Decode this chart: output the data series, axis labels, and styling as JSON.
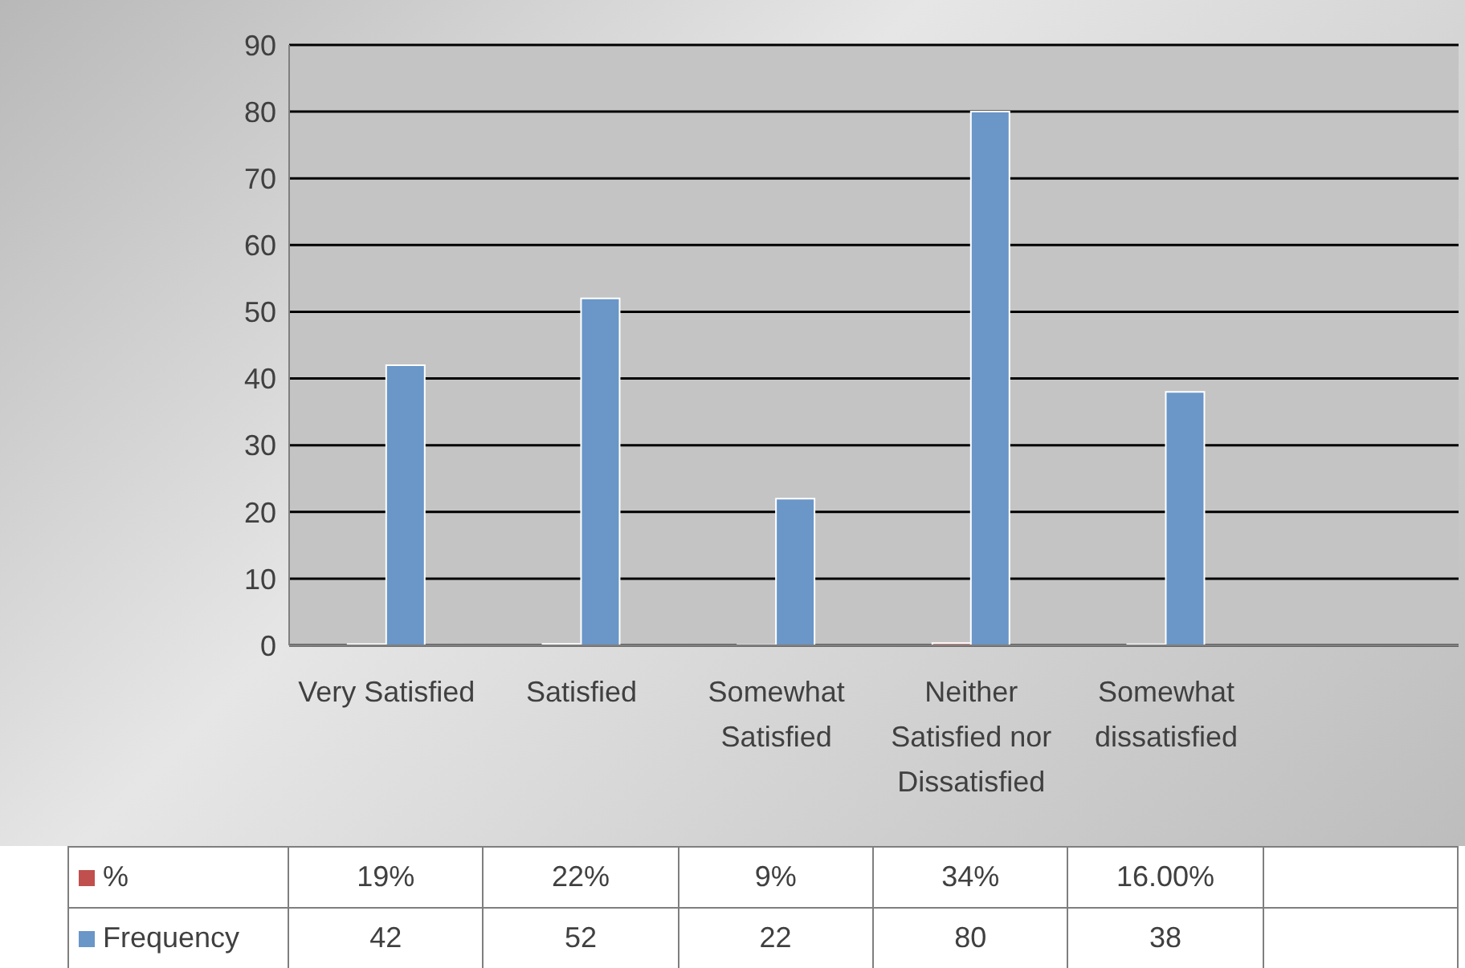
{
  "chart_data": {
    "type": "bar",
    "categories": [
      "Very Satisfied",
      "Satisfied",
      "Somewhat Satisfied",
      "Neither Satisfied nor Dissatisfied",
      "Somewhat dissatisfied",
      null
    ],
    "series": [
      {
        "name": "%",
        "color": "#c0504d",
        "values": [
          0.19,
          0.22,
          0.09,
          0.34,
          0.16,
          null
        ],
        "value_labels": [
          "19%",
          "22%",
          "9%",
          "34%",
          "16.00%",
          null
        ]
      },
      {
        "name": "Frequency",
        "color": "#6a96c8",
        "values": [
          42,
          52,
          22,
          80,
          38,
          null
        ]
      }
    ],
    "ylim": [
      0,
      90
    ],
    "yticks": [
      0,
      10,
      20,
      30,
      40,
      50,
      60,
      70,
      80,
      90
    ],
    "grid": "y",
    "legend": "left",
    "data_labels": true
  }
}
